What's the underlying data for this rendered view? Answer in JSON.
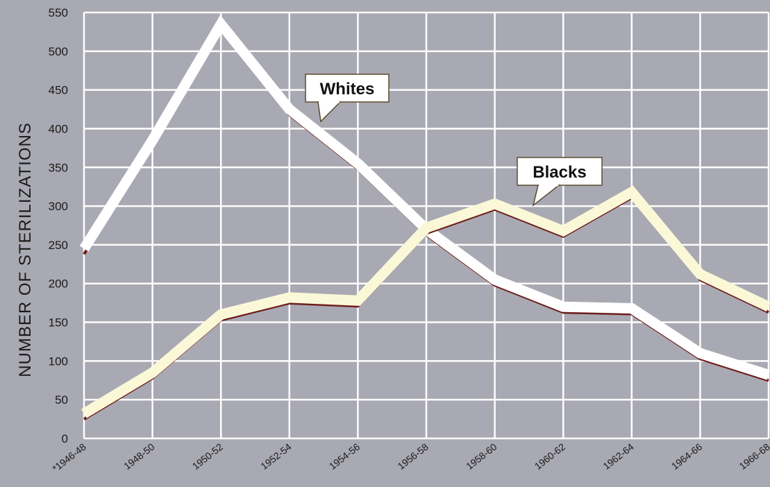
{
  "chart_data": {
    "type": "line",
    "title": "",
    "xlabel": "",
    "ylabel": "NUMBER OF STERILIZATIONS",
    "categories": [
      "*1946-48",
      "1948-50",
      "1950-52",
      "1952-54",
      "1954-56",
      "1956-58",
      "1958-60",
      "1960-62",
      "1962-64",
      "1964-66",
      "1966-68"
    ],
    "ylim": [
      0,
      550
    ],
    "yticks": [
      0,
      50,
      100,
      150,
      200,
      250,
      300,
      350,
      400,
      450,
      500,
      550
    ],
    "grid": true,
    "series": [
      {
        "name": "Whites",
        "values": [
          245,
          385,
          535,
          425,
          355,
          270,
          205,
          170,
          168,
          110,
          82
        ],
        "color": "#ffffff",
        "shadow_color": "#6e1e1e"
      },
      {
        "name": "Blacks",
        "values": [
          32,
          85,
          160,
          182,
          178,
          272,
          303,
          268,
          318,
          212,
          170
        ],
        "color": "#fbf8d8",
        "shadow_color": "#6e1e1e"
      }
    ],
    "colors": {
      "background": "#a9a9b3",
      "grid": "#ffffff",
      "callout_border": "#5a4a2e"
    }
  }
}
